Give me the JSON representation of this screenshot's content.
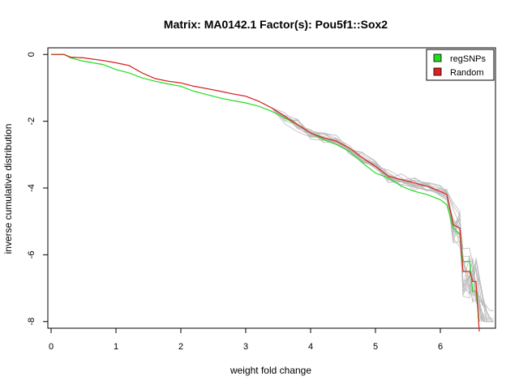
{
  "chart_data": {
    "type": "line",
    "title": "Matrix: MA0142.1 Factor(s): Pou5f1::Sox2",
    "xlabel": "weight fold change",
    "ylabel": "inverse cumulative distribution",
    "xlim": [
      -0.05,
      6.85
    ],
    "ylim": [
      -8.2,
      0.2
    ],
    "x_ticks": [
      0,
      1,
      2,
      3,
      4,
      5,
      6
    ],
    "y_ticks": [
      0,
      -2,
      -4,
      -6,
      -8
    ],
    "legend": {
      "position": "top-right",
      "entries": [
        "regSNPs",
        "Random"
      ]
    },
    "colors": {
      "regSNPs": "#22dd22",
      "Random": "#dd2222",
      "background_runs": "#bbbbbb"
    },
    "series": [
      {
        "name": "regSNPs",
        "x": [
          0,
          0.2,
          0.3,
          0.5,
          0.8,
          1.0,
          1.2,
          1.4,
          1.6,
          1.8,
          2.0,
          2.2,
          2.4,
          2.6,
          2.8,
          3.0,
          3.2,
          3.4,
          3.6,
          3.8,
          4.0,
          4.2,
          4.4,
          4.6,
          4.8,
          5.0,
          5.2,
          5.4,
          5.6,
          5.8,
          6.0,
          6.1,
          6.2,
          6.3,
          6.35,
          6.45,
          6.5,
          6.55,
          6.6
        ],
        "y": [
          0,
          0,
          -0.1,
          -0.2,
          -0.3,
          -0.45,
          -0.55,
          -0.7,
          -0.8,
          -0.88,
          -0.95,
          -1.1,
          -1.2,
          -1.3,
          -1.38,
          -1.45,
          -1.55,
          -1.7,
          -1.9,
          -2.1,
          -2.35,
          -2.55,
          -2.7,
          -2.9,
          -3.25,
          -3.55,
          -3.7,
          -3.95,
          -4.1,
          -4.2,
          -4.35,
          -4.5,
          -5.2,
          -5.4,
          -6.2,
          -6.2,
          -7.1,
          -7.1,
          -8
        ]
      },
      {
        "name": "Random",
        "x": [
          0,
          0.2,
          0.3,
          0.5,
          0.8,
          1.0,
          1.2,
          1.4,
          1.6,
          1.8,
          2.0,
          2.2,
          2.4,
          2.6,
          2.8,
          3.0,
          3.2,
          3.4,
          3.6,
          3.8,
          4.0,
          4.2,
          4.4,
          4.6,
          4.8,
          5.0,
          5.2,
          5.4,
          5.6,
          5.8,
          6.0,
          6.1,
          6.2,
          6.3,
          6.35,
          6.45,
          6.5,
          6.55,
          6.6
        ],
        "y": [
          0,
          0,
          -0.08,
          -0.1,
          -0.18,
          -0.25,
          -0.33,
          -0.55,
          -0.72,
          -0.8,
          -0.85,
          -0.95,
          -1.02,
          -1.1,
          -1.18,
          -1.25,
          -1.4,
          -1.6,
          -1.85,
          -2.1,
          -2.35,
          -2.5,
          -2.6,
          -2.8,
          -3.1,
          -3.35,
          -3.65,
          -3.75,
          -3.85,
          -3.95,
          -4.1,
          -4.2,
          -5.1,
          -5.2,
          -6.5,
          -6.5,
          -6.8,
          -6.8,
          -8.3
        ]
      }
    ]
  }
}
